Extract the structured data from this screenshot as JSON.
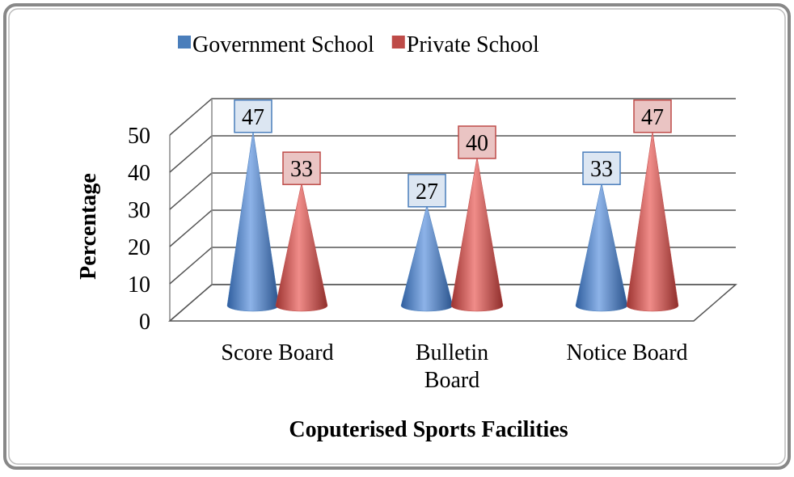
{
  "chart_data": {
    "type": "cone",
    "x_label": "Coputerised Sports Facilities",
    "y_label": "Percentage",
    "categories": [
      "Score Board",
      "Bulletin Board",
      "Notice Board"
    ],
    "series": [
      {
        "name": "Government School",
        "color": "#4a7ebb",
        "values": [
          47,
          27,
          33
        ]
      },
      {
        "name": "Private School",
        "color": "#be4b48",
        "values": [
          33,
          40,
          47
        ]
      }
    ],
    "ylim": [
      0,
      50
    ],
    "yticks": [
      0,
      10,
      20,
      30,
      40,
      50
    ],
    "grid": true,
    "legend": "top"
  }
}
